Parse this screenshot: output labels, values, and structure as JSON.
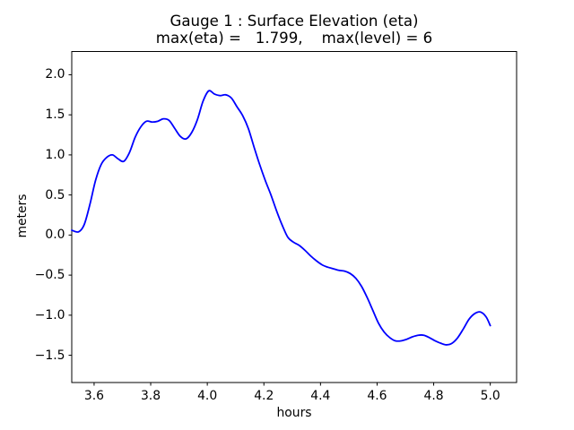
{
  "figure": {
    "background": "#ffffff",
    "text_color": "#000000"
  },
  "chart_data": {
    "type": "line",
    "title_line1": "Gauge 1 : Surface Elevation (eta)",
    "title_line2": "max(eta) =   1.799,    max(level) = 6",
    "xlabel": "hours",
    "ylabel": "meters",
    "xlim": [
      3.521,
      5.093
    ],
    "ylim": [
      -1.84,
      2.29
    ],
    "xticks": [
      3.6,
      3.8,
      4.0,
      4.2,
      4.4,
      4.6,
      4.8,
      5.0
    ],
    "xtick_labels": [
      "3.6",
      "3.8",
      "4.0",
      "4.2",
      "4.4",
      "4.6",
      "4.8",
      "5.0"
    ],
    "yticks": [
      2.0,
      1.5,
      1.0,
      0.5,
      0.0,
      -0.5,
      -1.0,
      -1.5
    ],
    "ytick_labels": [
      "2.0",
      "1.5",
      "1.0",
      "0.5",
      "0.0",
      "−0.5",
      "−1.0",
      "−1.5"
    ],
    "grid": false,
    "legend_position": "none",
    "frame_color": "#000000",
    "series": [
      {
        "name": "eta",
        "color": "#0000ff",
        "line_width": 1.8,
        "points": [
          [
            3.521,
            0.06
          ],
          [
            3.545,
            0.04
          ],
          [
            3.565,
            0.13
          ],
          [
            3.585,
            0.38
          ],
          [
            3.605,
            0.68
          ],
          [
            3.625,
            0.88
          ],
          [
            3.645,
            0.97
          ],
          [
            3.665,
            1.0
          ],
          [
            3.685,
            0.95
          ],
          [
            3.705,
            0.92
          ],
          [
            3.725,
            1.03
          ],
          [
            3.745,
            1.22
          ],
          [
            3.765,
            1.35
          ],
          [
            3.785,
            1.42
          ],
          [
            3.805,
            1.41
          ],
          [
            3.825,
            1.42
          ],
          [
            3.845,
            1.45
          ],
          [
            3.865,
            1.43
          ],
          [
            3.885,
            1.33
          ],
          [
            3.905,
            1.23
          ],
          [
            3.925,
            1.2
          ],
          [
            3.945,
            1.28
          ],
          [
            3.965,
            1.44
          ],
          [
            3.985,
            1.67
          ],
          [
            4.005,
            1.799
          ],
          [
            4.025,
            1.76
          ],
          [
            4.045,
            1.74
          ],
          [
            4.065,
            1.75
          ],
          [
            4.085,
            1.71
          ],
          [
            4.105,
            1.6
          ],
          [
            4.125,
            1.49
          ],
          [
            4.145,
            1.33
          ],
          [
            4.165,
            1.1
          ],
          [
            4.185,
            0.88
          ],
          [
            4.205,
            0.68
          ],
          [
            4.225,
            0.5
          ],
          [
            4.245,
            0.3
          ],
          [
            4.265,
            0.12
          ],
          [
            4.285,
            -0.03
          ],
          [
            4.305,
            -0.09
          ],
          [
            4.325,
            -0.13
          ],
          [
            4.345,
            -0.19
          ],
          [
            4.365,
            -0.26
          ],
          [
            4.385,
            -0.32
          ],
          [
            4.405,
            -0.37
          ],
          [
            4.425,
            -0.4
          ],
          [
            4.445,
            -0.42
          ],
          [
            4.465,
            -0.44
          ],
          [
            4.485,
            -0.45
          ],
          [
            4.505,
            -0.48
          ],
          [
            4.525,
            -0.54
          ],
          [
            4.545,
            -0.64
          ],
          [
            4.565,
            -0.78
          ],
          [
            4.585,
            -0.94
          ],
          [
            4.605,
            -1.1
          ],
          [
            4.625,
            -1.21
          ],
          [
            4.645,
            -1.28
          ],
          [
            4.665,
            -1.32
          ],
          [
            4.685,
            -1.32
          ],
          [
            4.705,
            -1.3
          ],
          [
            4.725,
            -1.27
          ],
          [
            4.745,
            -1.25
          ],
          [
            4.765,
            -1.25
          ],
          [
            4.785,
            -1.28
          ],
          [
            4.805,
            -1.32
          ],
          [
            4.825,
            -1.35
          ],
          [
            4.845,
            -1.37
          ],
          [
            4.865,
            -1.35
          ],
          [
            4.885,
            -1.28
          ],
          [
            4.905,
            -1.17
          ],
          [
            4.925,
            -1.05
          ],
          [
            4.945,
            -0.98
          ],
          [
            4.965,
            -0.96
          ],
          [
            4.985,
            -1.02
          ],
          [
            5.0,
            -1.13
          ]
        ]
      }
    ]
  }
}
